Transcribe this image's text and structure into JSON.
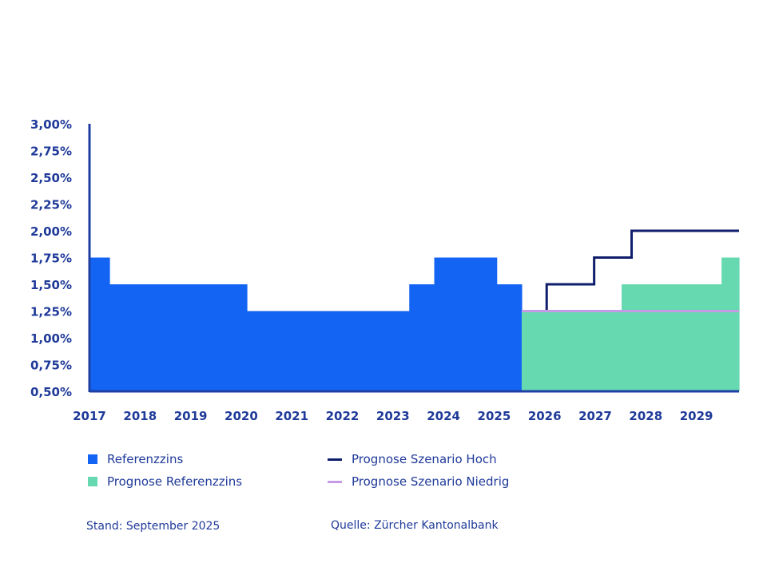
{
  "chart_data": {
    "type": "area",
    "x_ticks": [
      "2017",
      "2018",
      "2019",
      "2020",
      "2021",
      "2022",
      "2023",
      "2024",
      "2025",
      "2026",
      "2027",
      "2028",
      "2029"
    ],
    "y_ticks": [
      "0,50%",
      "0,75%",
      "1,00%",
      "1,25%",
      "1,50%",
      "1,75%",
      "2,00%",
      "2,25%",
      "2,50%",
      "2,75%",
      "3,00%"
    ],
    "ylim": [
      0.5,
      3.0
    ],
    "xlim": [
      2017.0,
      2030.0
    ],
    "grid": false,
    "series": [
      {
        "name": "Referenzzins",
        "kind": "step-area",
        "color": "#1464f4",
        "steps": [
          {
            "x_start": 2017.0,
            "x_end": 2017.4,
            "y": 1.75
          },
          {
            "x_start": 2017.4,
            "x_end": 2020.15,
            "y": 1.5
          },
          {
            "x_start": 2020.15,
            "x_end": 2023.4,
            "y": 1.25
          },
          {
            "x_start": 2023.4,
            "x_end": 2023.9,
            "y": 1.5
          },
          {
            "x_start": 2023.9,
            "x_end": 2025.15,
            "y": 1.75
          },
          {
            "x_start": 2025.15,
            "x_end": 2025.65,
            "y": 1.5
          }
        ]
      },
      {
        "name": "Prognose Referenzzins",
        "kind": "step-area",
        "color": "#66d9b0",
        "steps": [
          {
            "x_start": 2025.65,
            "x_end": 2027.65,
            "y": 1.25
          },
          {
            "x_start": 2027.65,
            "x_end": 2029.65,
            "y": 1.5
          },
          {
            "x_start": 2029.65,
            "x_end": 2030.0,
            "y": 1.75
          }
        ]
      },
      {
        "name": "Prognose Szenario Hoch",
        "kind": "step-line",
        "color": "#0f1e6b",
        "points": [
          [
            2026.15,
            1.25
          ],
          [
            2026.15,
            1.5
          ],
          [
            2027.1,
            1.5
          ],
          [
            2027.1,
            1.75
          ],
          [
            2027.85,
            1.75
          ],
          [
            2027.85,
            2.0
          ],
          [
            2030.0,
            2.0
          ]
        ]
      },
      {
        "name": "Prognose Szenario Niedrig",
        "kind": "step-line",
        "color": "#c49ae6",
        "points": [
          [
            2025.65,
            1.25
          ],
          [
            2030.0,
            1.25
          ]
        ]
      }
    ]
  },
  "axis_color": "#1f3fa3",
  "legend": {
    "referenzzins": "Referenzzins",
    "prognose_referenzzins": "Prognose Referenzzins",
    "szenario_hoch": "Prognose Szenario Hoch",
    "szenario_niedrig": "Prognose Szenario Niedrig"
  },
  "footer": {
    "stand": "Stand: September 2025",
    "quelle": "Quelle: Zürcher Kantonalbank"
  }
}
